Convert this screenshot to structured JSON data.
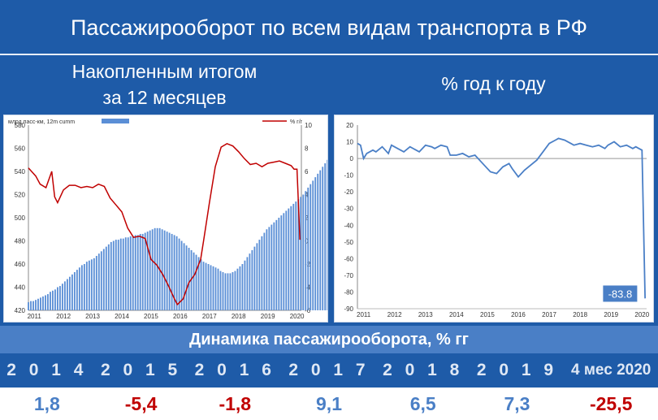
{
  "header": {
    "title": "Пассажирооборот по всем видам транспорта в РФ",
    "left_subtitle_line1": "Накопленным итогом",
    "left_subtitle_line2": "за 12 месяцев",
    "right_subtitle": "% год к году"
  },
  "colors": {
    "background": "#1e5ba8",
    "bar": "#5b8fd6",
    "line_red": "#c00000",
    "line_blue": "#4a7fc6",
    "positive": "#4a7fc6",
    "negative": "#c00000"
  },
  "chart_data": [
    {
      "type": "bar+line",
      "legend_bar": "млрд пасс-км, 12m cumm",
      "legend_line": "% г/г",
      "x_ticks": [
        "2011",
        "2012",
        "2013",
        "2014",
        "2015",
        "2016",
        "2017",
        "2018",
        "2019",
        "2020"
      ],
      "y_left_ticks": [
        420,
        440,
        460,
        480,
        500,
        520,
        540,
        560,
        580
      ],
      "y_right_ticks": [
        -6,
        -4,
        -2,
        0,
        2,
        4,
        6,
        8,
        10
      ],
      "ylim_left": [
        420,
        580
      ],
      "ylim_right": [
        -6,
        10
      ],
      "bar_series": {
        "name": "млрд пасс-км, 12m cumm",
        "x_start": 2011.0,
        "x_step": 0.0833,
        "values": [
          427,
          428,
          428,
          429,
          430,
          431,
          432,
          433,
          434,
          436,
          437,
          438,
          440,
          441,
          443,
          445,
          447,
          449,
          451,
          453,
          455,
          457,
          459,
          460,
          462,
          463,
          464,
          465,
          467,
          469,
          471,
          473,
          475,
          477,
          479,
          480,
          481,
          481,
          482,
          482,
          483,
          483,
          484,
          484,
          485,
          485,
          486,
          486,
          487,
          488,
          489,
          490,
          491,
          491,
          491,
          490,
          489,
          488,
          487,
          486,
          485,
          484,
          482,
          480,
          478,
          476,
          474,
          472,
          470,
          468,
          466,
          464,
          462,
          461,
          460,
          459,
          458,
          457,
          456,
          454,
          453,
          452,
          452,
          452,
          453,
          454,
          456,
          458,
          460,
          463,
          466,
          469,
          472,
          475,
          478,
          481,
          484,
          487,
          490,
          492,
          494,
          496,
          498,
          500,
          502,
          504,
          506,
          508,
          510,
          512,
          514,
          516,
          518,
          520,
          523,
          526,
          529,
          532,
          535,
          538,
          541,
          544,
          547,
          550,
          553,
          556,
          559,
          562,
          566,
          570,
          573,
          576,
          565,
          530
        ]
      },
      "line_series": {
        "name": "% г/г",
        "x": [
          2011.0,
          2011.25,
          2011.4,
          2011.6,
          2011.8,
          2011.9,
          2012.0,
          2012.2,
          2012.4,
          2012.6,
          2012.8,
          2013.0,
          2013.2,
          2013.4,
          2013.6,
          2013.8,
          2014.0,
          2014.2,
          2014.4,
          2014.6,
          2014.8,
          2015.0,
          2015.2,
          2015.4,
          2015.6,
          2015.8,
          2016.0,
          2016.1,
          2016.3,
          2016.5,
          2016.7,
          2016.9,
          2017.0,
          2017.2,
          2017.4,
          2017.6,
          2017.8,
          2018.0,
          2018.2,
          2018.4,
          2018.6,
          2018.8,
          2019.0,
          2019.2,
          2019.4,
          2019.6,
          2019.8,
          2020.0,
          2020.1,
          2020.2,
          2020.3
        ],
        "values": [
          6.3,
          5.6,
          4.9,
          4.6,
          6.0,
          3.8,
          3.3,
          4.4,
          4.8,
          4.8,
          4.6,
          4.7,
          4.6,
          4.9,
          4.7,
          3.7,
          3.1,
          2.5,
          1.1,
          0.3,
          0.4,
          0.2,
          -1.6,
          -2.1,
          -2.9,
          -3.9,
          -5.0,
          -5.5,
          -5.0,
          -3.6,
          -2.9,
          -1.6,
          0.0,
          3.3,
          6.4,
          8.1,
          8.4,
          8.2,
          7.7,
          7.1,
          6.6,
          6.7,
          6.4,
          6.7,
          6.8,
          6.9,
          6.7,
          6.5,
          6.2,
          6.2,
          0.1
        ]
      }
    },
    {
      "type": "line",
      "x_ticks": [
        "2011",
        "2012",
        "2013",
        "2014",
        "2015",
        "2016",
        "2017",
        "2018",
        "2019",
        "2020"
      ],
      "y_ticks": [
        20,
        10,
        0,
        -10,
        -20,
        -30,
        -40,
        -50,
        -60,
        -70,
        -80,
        -90
      ],
      "ylim": [
        -90,
        20
      ],
      "annotation": "-83.8",
      "series": {
        "x": [
          2011.0,
          2011.1,
          2011.2,
          2011.3,
          2011.5,
          2011.6,
          2011.8,
          2011.9,
          2012.0,
          2012.1,
          2012.3,
          2012.5,
          2012.7,
          2012.9,
          2013.0,
          2013.2,
          2013.4,
          2013.5,
          2013.7,
          2013.9,
          2014.0,
          2014.2,
          2014.4,
          2014.6,
          2014.8,
          2015.0,
          2015.1,
          2015.3,
          2015.5,
          2015.7,
          2015.9,
          2016.0,
          2016.2,
          2016.4,
          2016.6,
          2016.8,
          2017.0,
          2017.2,
          2017.4,
          2017.5,
          2017.7,
          2017.9,
          2018.0,
          2018.2,
          2018.4,
          2018.6,
          2018.8,
          2019.0,
          2019.1,
          2019.3,
          2019.5,
          2019.7,
          2019.9,
          2020.0,
          2020.1,
          2020.2,
          2020.3
        ],
        "values": [
          9,
          8,
          0,
          3,
          5,
          4,
          7,
          5,
          3,
          8,
          6,
          4,
          7,
          5,
          4,
          8,
          7,
          6,
          8,
          7,
          2,
          2,
          3,
          1,
          2,
          -2,
          -4,
          -8,
          -9,
          -5,
          -3,
          -6,
          -11,
          -7,
          -4,
          -1,
          4,
          9,
          11,
          12,
          11,
          9,
          8,
          9,
          8,
          7,
          8,
          6,
          8,
          10,
          7,
          8,
          6,
          7,
          6,
          5,
          -83.8
        ]
      }
    }
  ],
  "table": {
    "heading": "Динамика пассажирооборота, % гг",
    "years": [
      "2 0 1 4",
      "2 0 1 5",
      "2 0 1 6",
      "2 0 1 7",
      "2 0 1 8",
      "2 0 1 9",
      "4 мес 2020"
    ],
    "values": [
      "1,8",
      "-5,4",
      "-1,8",
      "9,1",
      "6,5",
      "7,3",
      "-25,5"
    ]
  }
}
